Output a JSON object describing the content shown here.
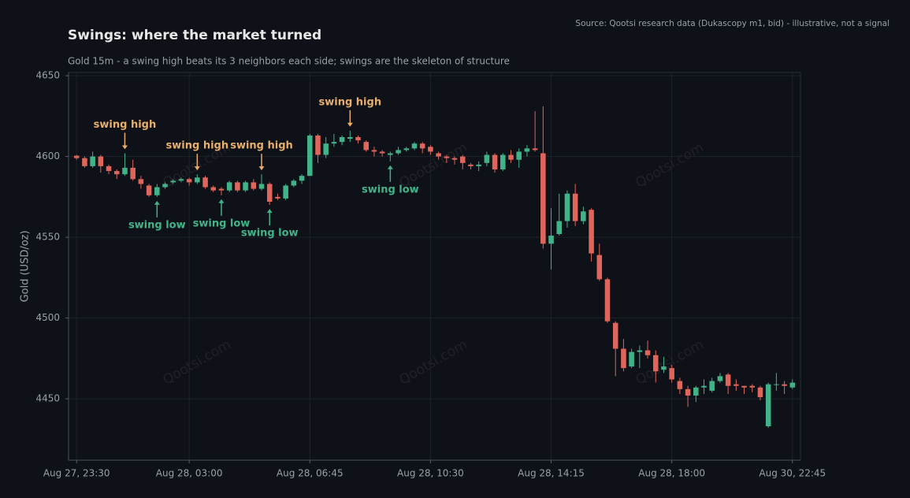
{
  "chart_data": {
    "type": "candlestick",
    "title": "Swings: where the market turned",
    "subtitle": "Gold 15m - a swing high beats its 3 neighbors each side; swings are the skeleton of structure",
    "source": "Source: Qootsi research data (Dukascopy m1, bid) - illustrative, not a signal",
    "watermark": "Qootsi.com",
    "ylabel": "Gold (USD/oz)",
    "categories": [
      "Aug 27, 23:30",
      null,
      null,
      null,
      null,
      null,
      null,
      null,
      null,
      null,
      null,
      null,
      null,
      null,
      "Aug 28, 03:00",
      null,
      null,
      null,
      null,
      null,
      null,
      null,
      null,
      null,
      null,
      null,
      null,
      null,
      null,
      "Aug 28, 06:45",
      null,
      null,
      null,
      null,
      null,
      null,
      null,
      null,
      null,
      null,
      null,
      null,
      null,
      null,
      "Aug 28, 10:30",
      null,
      null,
      null,
      null,
      null,
      null,
      null,
      null,
      null,
      null,
      null,
      null,
      null,
      null,
      "Aug 28, 14:15",
      null,
      null,
      null,
      null,
      null,
      null,
      null,
      null,
      null,
      null,
      null,
      null,
      null,
      null,
      "Aug 28, 18:00",
      null,
      null,
      null,
      null,
      null,
      null,
      null,
      null,
      null,
      null,
      null,
      null,
      null,
      null,
      "Aug 30, 22:45"
    ],
    "open": [
      4600.5,
      4599,
      4594,
      4600,
      4594,
      4591,
      4589,
      4593,
      4586,
      4582,
      4576,
      4581,
      4584,
      4585,
      4586,
      4584,
      4587,
      4581,
      4580,
      4579,
      4584,
      4579,
      4584,
      4580,
      4583,
      4575,
      4574,
      4582,
      4585,
      4588,
      4613,
      4601,
      4608,
      4609,
      4611,
      4612,
      4609,
      4604,
      4603,
      4601,
      4602,
      4604,
      4605,
      4608,
      4606,
      4602,
      4600,
      4599,
      4600,
      4595,
      4594,
      4596,
      4601,
      4592,
      4601,
      4598,
      4603,
      4605,
      4602,
      4546,
      4552,
      4560,
      4577,
      4560,
      4567,
      4539,
      4524,
      4497,
      4481,
      4470,
      4479,
      4480,
      4477,
      4468,
      4469,
      4461,
      4456,
      4452,
      4457,
      4455,
      4461,
      4465,
      4459,
      4458,
      4458,
      4457,
      4433,
      4459,
      4459,
      4457
    ],
    "high": [
      4601,
      4600,
      4603,
      4601,
      4595,
      4592,
      4602,
      4598,
      4588,
      4583,
      4583,
      4584,
      4586,
      4587,
      4587,
      4589,
      4588,
      4582,
      4581,
      4585,
      4585,
      4585,
      4586,
      4589,
      4584,
      4577,
      4583,
      4586,
      4589,
      4614,
      4614,
      4612,
      4614,
      4613,
      4616,
      4613,
      4610,
      4606,
      4604,
      4603,
      4606,
      4606,
      4609,
      4609,
      4607,
      4603,
      4601,
      4600,
      4601,
      4596,
      4597,
      4603,
      4602,
      4602,
      4604,
      4605,
      4607,
      4628,
      4631,
      4568,
      4577,
      4579,
      4583,
      4569,
      4568,
      4546,
      4525,
      4498,
      4487,
      4481,
      4483,
      4486,
      4480,
      4476,
      4471,
      4463,
      4458,
      4458,
      4462,
      4463,
      4466,
      4466,
      4462,
      4458,
      4459,
      4458,
      4460,
      4466,
      4461,
      4462
    ],
    "low": [
      4598,
      4593,
      4593,
      4590,
      4589,
      4586,
      4588,
      4585,
      4580,
      4575,
      4575,
      4580,
      4583,
      4584,
      4582,
      4583,
      4580,
      4578,
      4576,
      4578,
      4578,
      4578,
      4579,
      4579,
      4570,
      4573,
      4573,
      4581,
      4583,
      4588,
      4596,
      4599,
      4606,
      4607,
      4609,
      4608,
      4603,
      4600,
      4600,
      4597,
      4601,
      4603,
      4604,
      4602,
      4601,
      4598,
      4596,
      4595,
      4592,
      4592,
      4591,
      4594,
      4590,
      4591,
      4596,
      4593,
      4600,
      4603,
      4543,
      4530,
      4551,
      4556,
      4557,
      4558,
      4535,
      4523,
      4497,
      4464,
      4467,
      4469,
      4469,
      4475,
      4460,
      4466,
      4460,
      4453,
      4445,
      4448,
      4453,
      4454,
      4460,
      4453,
      4455,
      4453,
      4454,
      4449,
      4432,
      4455,
      4453,
      4456
    ],
    "close": [
      4599,
      4594,
      4600,
      4594,
      4591,
      4589,
      4593,
      4586,
      4583,
      4576,
      4581,
      4583,
      4585,
      4586,
      4584,
      4587,
      4581,
      4579,
      4579,
      4584,
      4579,
      4584,
      4580,
      4583,
      4572,
      4574,
      4582,
      4585,
      4588,
      4613,
      4601,
      4608,
      4609,
      4612,
      4612,
      4610,
      4604,
      4603,
      4602,
      4602,
      4604,
      4605,
      4608,
      4605,
      4603,
      4600,
      4599,
      4598,
      4596,
      4594,
      4595,
      4601,
      4592,
      4601,
      4598,
      4603,
      4605,
      4604,
      4546,
      4551,
      4560,
      4577,
      4560,
      4566,
      4540,
      4524,
      4498,
      4481,
      4469,
      4479,
      4480,
      4477,
      4467,
      4470,
      4462,
      4456,
      4452,
      4457,
      4458,
      4461,
      4464,
      4458,
      4458,
      4457,
      4457,
      4451,
      4459,
      4459,
      4458,
      4460
    ],
    "up_color": "#41b389",
    "down_color": "#e0655b",
    "annotations": [
      {
        "text": "swing high",
        "x": 6,
        "y": 4602,
        "color": "#e8ae6a"
      },
      {
        "text": "swing high",
        "x": 15,
        "y": 4589,
        "color": "#e8ae6a"
      },
      {
        "text": "swing high",
        "x": 23,
        "y": 4589,
        "color": "#e8ae6a"
      },
      {
        "text": "swing high",
        "x": 34,
        "y": 4616,
        "color": "#e8ae6a"
      },
      {
        "text": "swing low",
        "x": 10,
        "y": 4575,
        "color": "#41b389"
      },
      {
        "text": "swing low",
        "x": 18,
        "y": 4576,
        "color": "#41b389"
      },
      {
        "text": "swing low",
        "x": 24,
        "y": 4570,
        "color": "#41b389"
      },
      {
        "text": "swing low",
        "x": 39,
        "y": 4597,
        "color": "#41b389"
      }
    ],
    "ylim": [
      4412,
      4652
    ],
    "yticks": [
      4450,
      4500,
      4550,
      4600,
      4650
    ],
    "grid": true
  }
}
